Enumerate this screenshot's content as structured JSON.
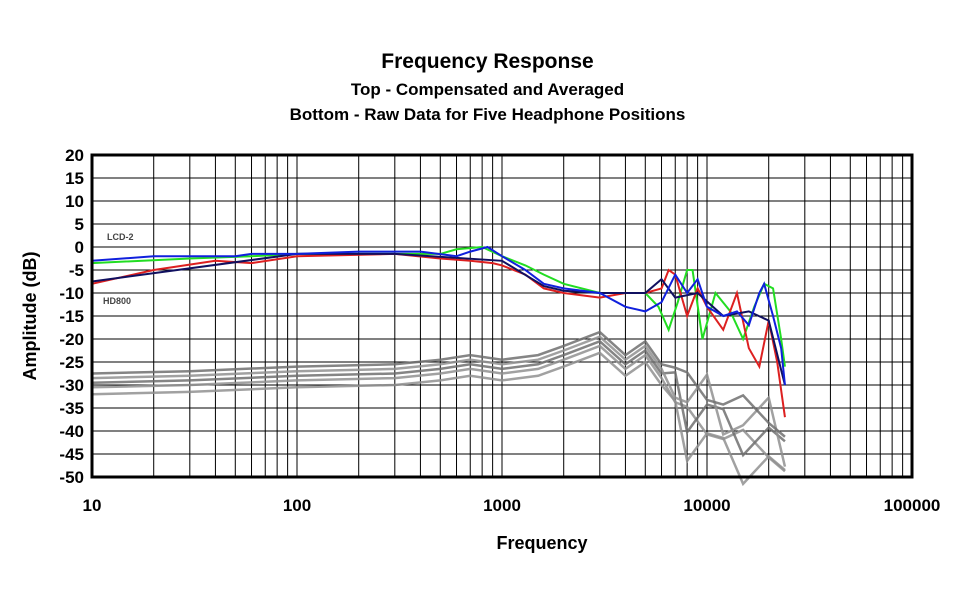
{
  "chart_data": {
    "type": "line",
    "title": "Frequency Response",
    "subtitle_1": "Top -  Compensated and Averaged",
    "subtitle_2": "Bottom - Raw Data for Five Headphone Positions",
    "xlabel": "Frequency",
    "ylabel": "Amplitude (dB)",
    "xscale": "log",
    "xlim": [
      10,
      100000
    ],
    "ylim": [
      -50,
      20
    ],
    "grid": true,
    "x_ticks": [
      "10",
      "100",
      "1000",
      "10000",
      "100000"
    ],
    "y_ticks": [
      "20",
      "15",
      "10",
      "5",
      "0",
      "-5",
      "-10",
      "-15",
      "-20",
      "-25",
      "-30",
      "-35",
      "-40",
      "-45",
      "-50"
    ],
    "annotations": [
      {
        "text": "LCD-2",
        "near_db": -2
      },
      {
        "text": "HD800",
        "near_db": -12
      }
    ],
    "series": [
      {
        "name": "gray raw",
        "color": "#909090",
        "x": [
          10,
          30,
          100,
          300,
          500,
          700,
          1000,
          1500,
          2000,
          3000,
          4000,
          5000,
          6000,
          7000,
          8000,
          10000,
          12000,
          15000,
          20000,
          24000
        ],
        "y": [
          -29,
          -28.5,
          -27.5,
          -27,
          -26,
          -25,
          -26,
          -25,
          -23,
          -20,
          -25,
          -22,
          -27,
          -30,
          -35,
          -33,
          -38,
          -40,
          -38,
          -45
        ]
      },
      {
        "name": "green",
        "color": "#22dd22",
        "x": [
          10,
          30,
          60,
          100,
          300,
          500,
          600,
          800,
          1000,
          1300,
          1600,
          2000,
          3000,
          4000,
          5000,
          5800,
          6500,
          7200,
          8000,
          8500,
          9500,
          11000,
          13000,
          15000,
          17000,
          19000,
          21000,
          23000,
          24000
        ],
        "y": [
          -3.5,
          -2.5,
          -2,
          -1.5,
          -1.5,
          -1.5,
          -0.5,
          0,
          -2,
          -4,
          -6,
          -8,
          -10,
          -10,
          -10,
          -13,
          -18,
          -12,
          -5,
          -5,
          -20,
          -10,
          -14,
          -20,
          -13,
          -8,
          -9,
          -20,
          -26
        ]
      },
      {
        "name": "red",
        "color": "#dd2020",
        "x": [
          10,
          20,
          40,
          60,
          100,
          300,
          500,
          700,
          900,
          1000,
          1300,
          1600,
          2000,
          3000,
          4000,
          5000,
          6000,
          6500,
          7000,
          8000,
          9000,
          10000,
          12000,
          14000,
          16000,
          18000,
          20000,
          22000,
          24000
        ],
        "y": [
          -8,
          -5,
          -3,
          -3.5,
          -2,
          -1.5,
          -2.5,
          -3,
          -3.5,
          -4,
          -6,
          -9,
          -10,
          -11,
          -10,
          -10,
          -9,
          -5,
          -6,
          -15,
          -9,
          -13,
          -18,
          -10,
          -22,
          -26,
          -16,
          -25,
          -37
        ]
      },
      {
        "name": "navy",
        "color": "#101060",
        "x": [
          10,
          100,
          300,
          1000,
          1600,
          2000,
          3000,
          5000,
          6000,
          7000,
          9000,
          12000,
          16000,
          20000,
          24000
        ],
        "y": [
          -7.5,
          -1.5,
          -1.5,
          -3,
          -8.5,
          -9.5,
          -10,
          -10,
          -7,
          -11,
          -10,
          -15,
          -14,
          -16,
          -30
        ]
      },
      {
        "name": "blue",
        "color": "#1020dd",
        "x": [
          10,
          20,
          50,
          60,
          100,
          200,
          400,
          600,
          700,
          850,
          1000,
          1300,
          1600,
          2000,
          3000,
          4000,
          5000,
          6000,
          7000,
          8000,
          9000,
          10000,
          12000,
          14000,
          16000,
          18000,
          19000,
          21000,
          23000,
          24000
        ],
        "y": [
          -3,
          -2,
          -2,
          -1.5,
          -1.5,
          -1,
          -1,
          -2,
          -1,
          0,
          -2,
          -5,
          -8,
          -9,
          -10,
          -13,
          -14,
          -12,
          -6,
          -10,
          -7,
          -13,
          -15,
          -14,
          -17,
          -10,
          -8,
          -15,
          -22,
          -30
        ]
      }
    ]
  }
}
